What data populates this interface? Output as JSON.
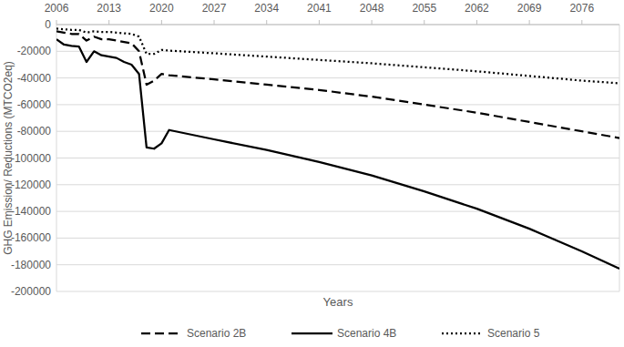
{
  "chart_data": {
    "type": "line",
    "x_label": "Years",
    "y_label": "GHG Emission/ Reductions (MTCO2eq)",
    "x": [
      2006,
      2007,
      2008,
      2009,
      2010,
      2011,
      2012,
      2013,
      2014,
      2015,
      2016,
      2017,
      2018,
      2019,
      2020,
      2021,
      2027,
      2034,
      2041,
      2048,
      2055,
      2062,
      2069,
      2076,
      2081
    ],
    "xlim": [
      2006,
      2081
    ],
    "xticks": [
      2006,
      2013,
      2020,
      2027,
      2034,
      2041,
      2048,
      2055,
      2062,
      2069,
      2076
    ],
    "ylim": [
      -200000,
      0
    ],
    "yticks": [
      0,
      -20000,
      -40000,
      -60000,
      -80000,
      -100000,
      -120000,
      -140000,
      -160000,
      -180000,
      -200000
    ],
    "grid": true,
    "legend": "bottom",
    "series": [
      {
        "name": "Scenario 2B",
        "color": "#000000",
        "line_style": "dashed",
        "values": [
          -5000,
          -6000,
          -7000,
          -7000,
          -12000,
          -9000,
          -11000,
          -11000,
          -12000,
          -13000,
          -14000,
          -20000,
          -45000,
          -42000,
          -37000,
          -38000,
          -41000,
          -45000,
          -49000,
          -54000,
          -60000,
          -66000,
          -73000,
          -80000,
          -85000
        ]
      },
      {
        "name": "Scenario 4B",
        "color": "#000000",
        "line_style": "solid",
        "values": [
          -11000,
          -15000,
          -16000,
          -16500,
          -28000,
          -20000,
          -23000,
          -24000,
          -25000,
          -28000,
          -30000,
          -37000,
          -92000,
          -93000,
          -89000,
          -79000,
          -86000,
          -94000,
          -103000,
          -113000,
          -125000,
          -138000,
          -153000,
          -170000,
          -183000
        ]
      },
      {
        "name": "Scenario 5",
        "color": "#000000",
        "line_style": "dotted",
        "values": [
          -3000,
          -3500,
          -4000,
          -4000,
          -6000,
          -5000,
          -5500,
          -5500,
          -6000,
          -6500,
          -7000,
          -9000,
          -22000,
          -22000,
          -19000,
          -19500,
          -21500,
          -24000,
          -26500,
          -29000,
          -32000,
          -35000,
          -38500,
          -42000,
          -44000
        ]
      }
    ]
  }
}
